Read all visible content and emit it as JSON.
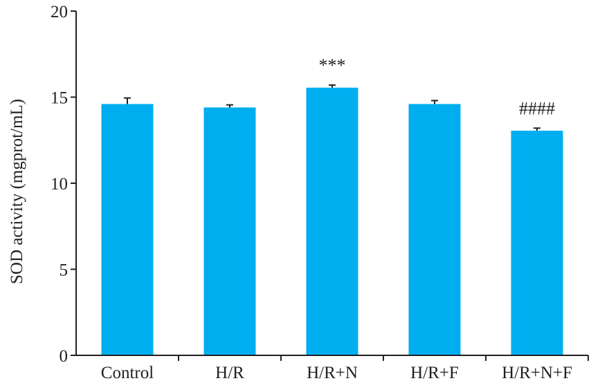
{
  "chart_data": {
    "type": "bar",
    "categories": [
      "Control",
      "H/R",
      "H/R+N",
      "H/R+F",
      "H/R+N+F"
    ],
    "values": [
      14.6,
      14.4,
      15.55,
      14.6,
      13.05
    ],
    "errors": [
      0.35,
      0.15,
      0.15,
      0.2,
      0.15
    ],
    "annotations": [
      "",
      "",
      "***",
      "",
      "####"
    ],
    "ylabel": "SOD activity (mgprot/mL)",
    "xlabel": "",
    "title": "",
    "ylim": [
      0,
      20
    ],
    "yticks": [
      0,
      5,
      10,
      15,
      20
    ],
    "ytick_labels": [
      "0",
      "5",
      "10",
      "15",
      "20"
    ],
    "bar_color": "#00aeef",
    "axis_color": "#231f20",
    "grid": false,
    "legend": "none"
  }
}
